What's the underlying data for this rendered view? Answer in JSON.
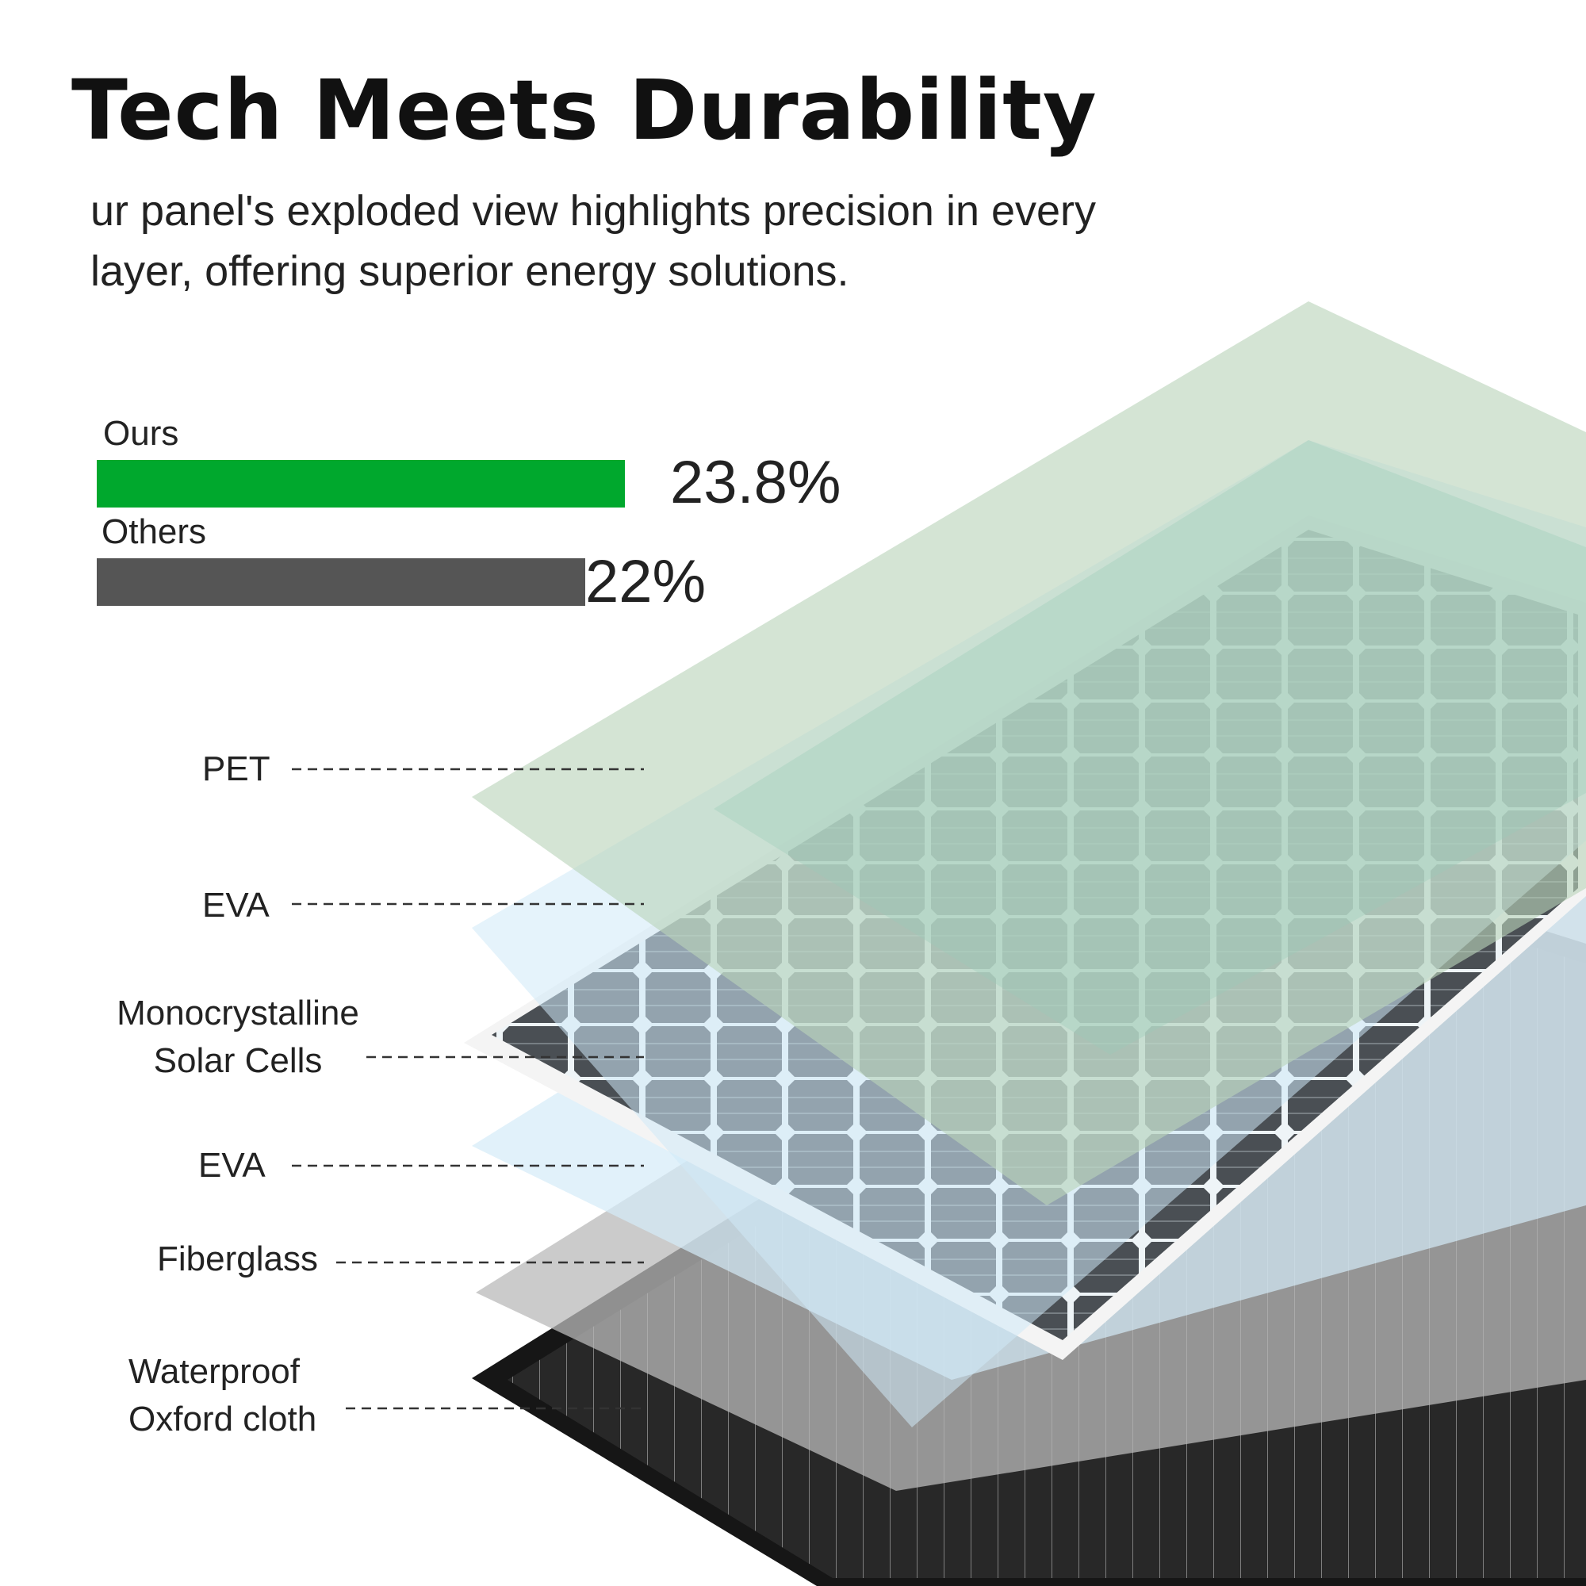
{
  "title": "Tech Meets Durability",
  "subtitle": "ur panel's exploded view highlights precision in every layer, offering superior energy solutions.",
  "efficiency": {
    "ours": {
      "label": "Ours",
      "value_text": "23.8%",
      "value": 23.8,
      "color": "#00a82d"
    },
    "others": {
      "label": "Others",
      "value_text": "22%",
      "value": 22,
      "color": "#555555"
    }
  },
  "layers": [
    {
      "name": "PET",
      "lines": [
        "PET"
      ],
      "color": "#c4d9c2"
    },
    {
      "name": "EVA",
      "lines": [
        "EVA"
      ],
      "color": "#d8eef9"
    },
    {
      "name": "Monocrystalline Solar Cells",
      "lines": [
        "Monocrystalline",
        "Solar Cells"
      ],
      "color": "#3a3a3a"
    },
    {
      "name": "EVA",
      "lines": [
        "EVA"
      ],
      "color": "#d8eef9"
    },
    {
      "name": "Fiberglass",
      "lines": [
        "Fiberglass"
      ],
      "color": "#b8b8b8"
    },
    {
      "name": "Waterproof Oxford cloth",
      "lines": [
        "Waterproof",
        "Oxford cloth"
      ],
      "color": "#1c1c1c"
    }
  ]
}
